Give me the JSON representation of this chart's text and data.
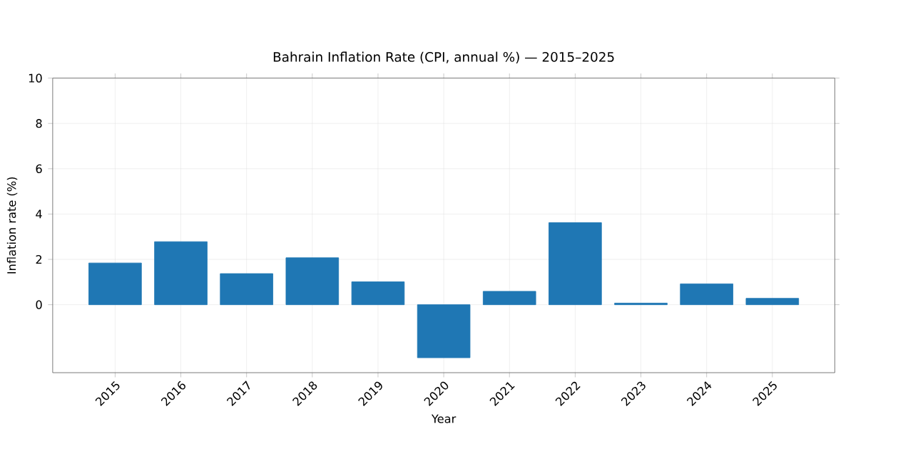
{
  "chart_data": {
    "type": "bar",
    "title": "Bahrain Inflation Rate (CPI, annual %) — 2015–2025",
    "xlabel": "Year",
    "ylabel": "Inflation rate (%)",
    "categories": [
      "2015",
      "2016",
      "2017",
      "2018",
      "2019",
      "2020",
      "2021",
      "2022",
      "2023",
      "2024",
      "2025"
    ],
    "values": [
      1.84,
      2.78,
      1.37,
      2.07,
      1.01,
      -2.34,
      0.59,
      3.62,
      0.07,
      0.92,
      0.28
    ],
    "color": "#1f77b4",
    "ylim": [
      -3,
      10
    ],
    "yticks": [
      0,
      2,
      4,
      6,
      8,
      10
    ],
    "grid": true
  }
}
